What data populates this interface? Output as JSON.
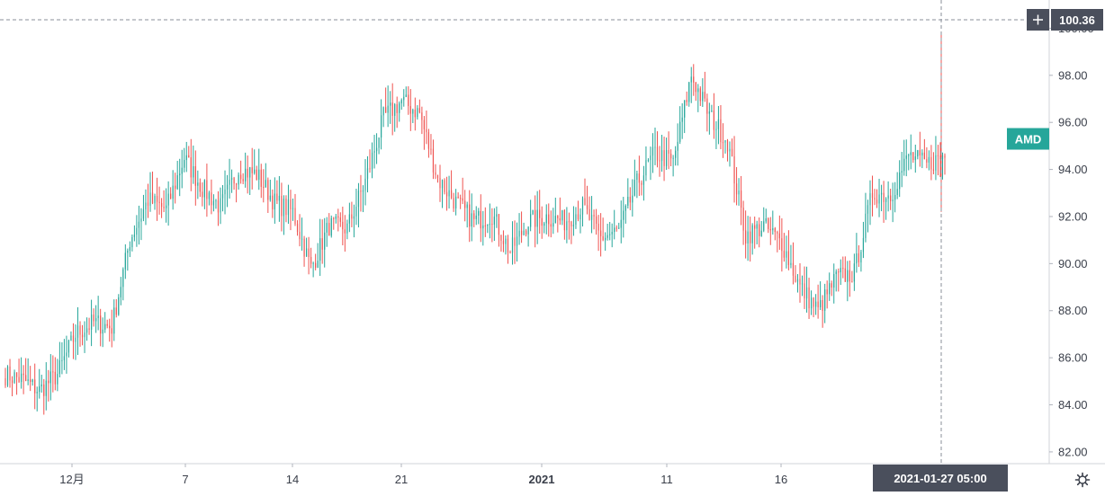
{
  "chart_data": {
    "type": "candlestick",
    "symbol": "AMD",
    "y_ticks": [
      "82.00",
      "84.00",
      "86.00",
      "88.00",
      "90.00",
      "92.00",
      "94.00",
      "96.00",
      "98.00",
      "100.00"
    ],
    "ylim": [
      81.5,
      101.2
    ],
    "x_ticks": [
      {
        "label": "12月",
        "bold": false
      },
      {
        "label": "7",
        "bold": false
      },
      {
        "label": "14",
        "bold": false
      },
      {
        "label": "21",
        "bold": false
      },
      {
        "label": "2021",
        "bold": true
      },
      {
        "label": "11",
        "bold": false
      },
      {
        "label": "16",
        "bold": false
      }
    ],
    "crosshair": {
      "price_label": "100.36",
      "price": 100.36,
      "time_label": "2021-01-27   05:00"
    },
    "colors": {
      "up": "#26a69a",
      "down": "#ef5350",
      "symbol_bg": "#26a69a",
      "crosshair_bg": "#4a4f5c",
      "grid": "#e6e6e6"
    },
    "icons": {
      "add": "plus-icon",
      "settings": "gear-icon"
    },
    "ohlc_keypoints": [
      {
        "day": 1,
        "close": 85.1
      },
      {
        "day": 2,
        "close": 84.6
      },
      {
        "day": 3,
        "close": 85.3
      },
      {
        "day": 4,
        "close": 87.0
      },
      {
        "day": 5,
        "close": 87.5
      },
      {
        "day": 6,
        "close": 87.3
      },
      {
        "day": 7,
        "close": 91.0
      },
      {
        "day": 8,
        "close": 92.7
      },
      {
        "day": 9,
        "close": 92.3
      },
      {
        "day": 10,
        "close": 94.5
      },
      {
        "day": 11,
        "close": 93.2
      },
      {
        "day": 12,
        "close": 92.4
      },
      {
        "day": 13,
        "close": 94.0
      },
      {
        "day": 14,
        "close": 93.8
      },
      {
        "day": 15,
        "close": 92.6
      },
      {
        "day": 16,
        "close": 92.2
      },
      {
        "day": 17,
        "close": 89.8
      },
      {
        "day": 18,
        "close": 91.6
      },
      {
        "day": 19,
        "close": 91.5
      },
      {
        "day": 20,
        "close": 93.5
      },
      {
        "day": 21,
        "close": 96.2
      },
      {
        "day": 22,
        "close": 96.9
      },
      {
        "day": 23,
        "close": 96.4
      },
      {
        "day": 24,
        "close": 93.6
      },
      {
        "day": 25,
        "close": 92.6
      },
      {
        "day": 26,
        "close": 91.8
      },
      {
        "day": 27,
        "close": 92.1
      },
      {
        "day": 28,
        "close": 90.5
      },
      {
        "day": 29,
        "close": 91.8
      },
      {
        "day": 30,
        "close": 92.0
      },
      {
        "day": 31,
        "close": 91.8
      },
      {
        "day": 32,
        "close": 92.4
      },
      {
        "day": 33,
        "close": 91.1
      },
      {
        "day": 34,
        "close": 91.4
      },
      {
        "day": 35,
        "close": 93.4
      },
      {
        "day": 36,
        "close": 94.7
      },
      {
        "day": 37,
        "close": 94.3
      },
      {
        "day": 38,
        "close": 98.0
      },
      {
        "day": 39,
        "close": 96.3
      },
      {
        "day": 40,
        "close": 95.2
      },
      {
        "day": 41,
        "close": 91.2
      },
      {
        "day": 42,
        "close": 91.6
      },
      {
        "day": 43,
        "close": 90.9
      },
      {
        "day": 44,
        "close": 89.0
      },
      {
        "day": 45,
        "close": 88.0
      },
      {
        "day": 46,
        "close": 89.4
      },
      {
        "day": 47,
        "close": 89.6
      },
      {
        "day": 48,
        "close": 93.0
      },
      {
        "day": 49,
        "close": 92.9
      },
      {
        "day": 50,
        "close": 94.6
      },
      {
        "day": 51,
        "close": 94.2
      },
      {
        "day": 52,
        "close": 94.6
      }
    ]
  }
}
